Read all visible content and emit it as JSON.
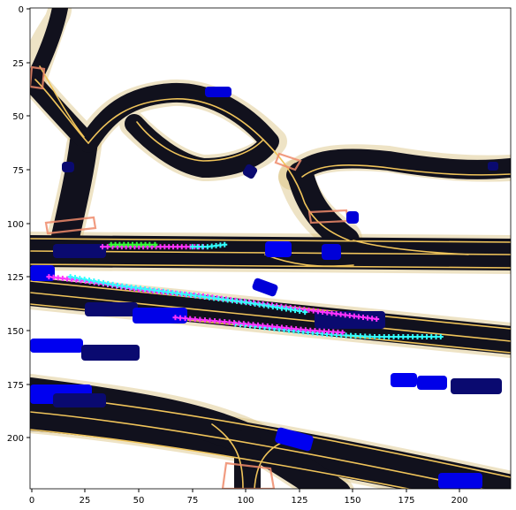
{
  "figure": {
    "x_ticks": [
      "0",
      "25",
      "50",
      "75",
      "100",
      "125",
      "150",
      "175",
      "200"
    ],
    "y_ticks": [
      "0",
      "25",
      "50",
      "75",
      "100",
      "125",
      "150",
      "175",
      "200"
    ]
  },
  "plot_data": {
    "x_range": [
      0,
      224
    ],
    "y_range": [
      0,
      224
    ],
    "colors": {
      "road": "#11111d",
      "lane_line": "#f0c45a",
      "road_halo": "#d9c07f",
      "crosswalk": "#ef8a6a",
      "agent_dark": "#0a0a70",
      "agent_blue": "#0000f0",
      "trajectory_magenta": "#ff33ff",
      "trajectory_cyan": "#33ffff",
      "trajectory_green": "#33ff33"
    },
    "trajectories": [
      {
        "color": "magenta",
        "points": [
          [
            33,
            111
          ],
          [
            40,
            111
          ],
          [
            50,
            111
          ],
          [
            60,
            111
          ],
          [
            70,
            111
          ],
          [
            80,
            111
          ],
          [
            83,
            111
          ]
        ]
      },
      {
        "color": "green",
        "points": [
          [
            37,
            110
          ],
          [
            45,
            110
          ],
          [
            55,
            110
          ],
          [
            60,
            110
          ]
        ]
      },
      {
        "color": "cyan",
        "points": [
          [
            75,
            111
          ],
          [
            82,
            111
          ],
          [
            90,
            110
          ],
          [
            93,
            110
          ]
        ]
      },
      {
        "color": "magenta",
        "points": [
          [
            8,
            125
          ],
          [
            25,
            127
          ],
          [
            50,
            131
          ],
          [
            80,
            134
          ],
          [
            110,
            138
          ],
          [
            140,
            142
          ],
          [
            163,
            145
          ]
        ]
      },
      {
        "color": "cyan",
        "points": [
          [
            18,
            125
          ],
          [
            40,
            129
          ],
          [
            70,
            133
          ],
          [
            100,
            137
          ],
          [
            125,
            141
          ],
          [
            130,
            142
          ]
        ]
      },
      {
        "color": "cyan",
        "points": [
          [
            95,
            147
          ],
          [
            120,
            150
          ],
          [
            140,
            152
          ],
          [
            160,
            153
          ],
          [
            180,
            153
          ],
          [
            193,
            153
          ]
        ]
      },
      {
        "color": "magenta",
        "points": [
          [
            67,
            144
          ],
          [
            90,
            146
          ],
          [
            110,
            148
          ],
          [
            130,
            150
          ],
          [
            145,
            151
          ],
          [
            148,
            151
          ]
        ]
      }
    ]
  }
}
